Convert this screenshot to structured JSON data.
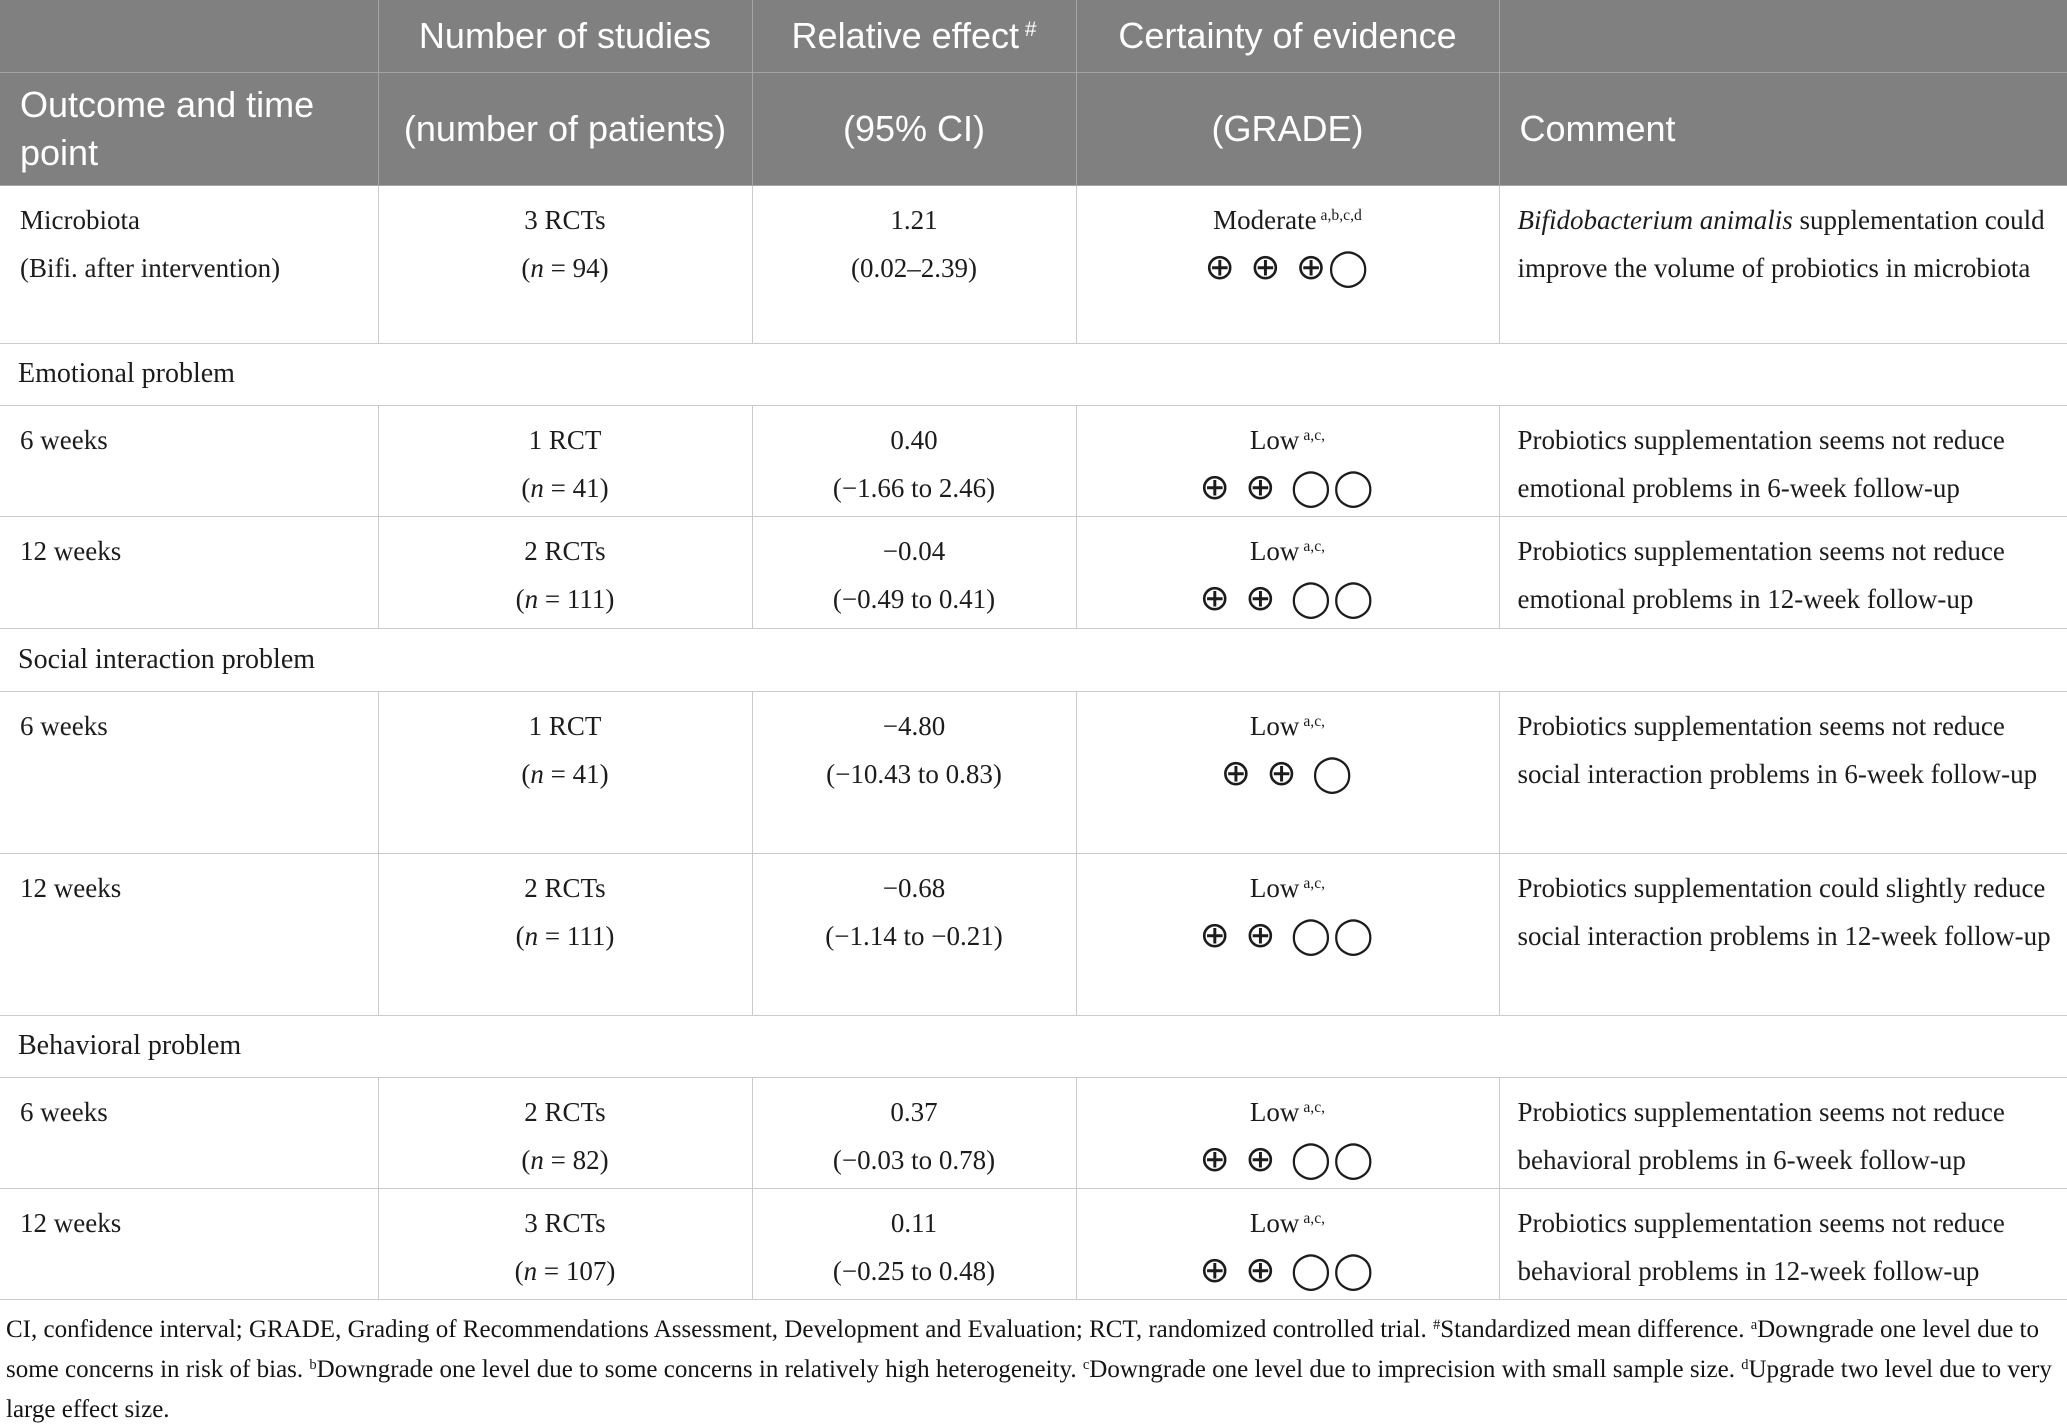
{
  "header": {
    "row1": [
      {
        "text": "",
        "sup": ""
      },
      {
        "text": "Number of studies",
        "sup": ""
      },
      {
        "text": "Relative effect",
        "sup": "#"
      },
      {
        "text": "Certainty of evidence",
        "sup": ""
      },
      {
        "text": "",
        "sup": ""
      }
    ],
    "row2": [
      {
        "text": "Outcome and time point"
      },
      {
        "text": "(number of patients)"
      },
      {
        "text": "(95% CI)"
      },
      {
        "text": "(GRADE)"
      },
      {
        "text": "Comment"
      }
    ]
  },
  "rows": [
    {
      "type": "data",
      "outcome_line1": "Microbiota",
      "outcome_line2": "(Bifi. after intervention)",
      "studies": "3 RCTs",
      "patients_pre": "(",
      "patients_var": "n",
      "patients_rest": " = 94)",
      "effect": "1.21",
      "ci": "(0.02–2.39)",
      "certainty": "Moderate",
      "certainty_sup": "a,b,c,d",
      "symbols": "⊕ ⊕ ⊕◯",
      "comment_italic": "Bifidobacterium animalis",
      "comment": " supplementation could improve the volume of probiotics in microbiota"
    },
    {
      "type": "section",
      "label": "Emotional problem"
    },
    {
      "type": "data",
      "outcome_line1": "6 weeks",
      "outcome_line2": "",
      "studies": "1 RCT",
      "patients_pre": "(",
      "patients_var": "n",
      "patients_rest": " = 41)",
      "effect": "0.40",
      "ci": "(−1.66 to 2.46)",
      "certainty": "Low",
      "certainty_sup": "a,c,",
      "symbols": "⊕ ⊕ ◯◯",
      "comment_italic": "",
      "comment": "Probiotics supplementation seems not reduce emotional problems in 6-week follow-up"
    },
    {
      "type": "data",
      "outcome_line1": "12 weeks",
      "outcome_line2": "",
      "studies": "2 RCTs",
      "patients_pre": "(",
      "patients_var": "n",
      "patients_rest": " = 111)",
      "effect": "−0.04",
      "ci": "(−0.49 to 0.41)",
      "certainty": "Low",
      "certainty_sup": "a,c,",
      "symbols": "⊕ ⊕ ◯◯",
      "comment_italic": "",
      "comment": "Probiotics supplementation seems not reduce emotional problems in 12-week follow-up"
    },
    {
      "type": "section",
      "label": "Social interaction problem"
    },
    {
      "type": "data",
      "outcome_line1": "6 weeks",
      "outcome_line2": "",
      "studies": "1 RCT",
      "patients_pre": "(",
      "patients_var": "n",
      "patients_rest": " = 41)",
      "effect": "−4.80",
      "ci": "(−10.43 to 0.83)",
      "certainty": "Low",
      "certainty_sup": "a,c,",
      "symbols": "⊕ ⊕ ◯",
      "comment_italic": "",
      "comment": "Probiotics supplementation seems not reduce social interaction problems in 6-week follow-up"
    },
    {
      "type": "data",
      "outcome_line1": "12 weeks",
      "outcome_line2": "",
      "studies": "2 RCTs",
      "patients_pre": "(",
      "patients_var": "n",
      "patients_rest": " = 111)",
      "effect": "−0.68",
      "ci": "(−1.14 to −0.21)",
      "certainty": "Low",
      "certainty_sup": "a,c,",
      "symbols": "⊕ ⊕ ◯◯",
      "comment_italic": "",
      "comment": "Probiotics supplementation could slightly reduce social interaction problems in 12-week follow-up"
    },
    {
      "type": "section",
      "label": "Behavioral problem"
    },
    {
      "type": "data",
      "outcome_line1": "6 weeks",
      "outcome_line2": "",
      "studies": "2 RCTs",
      "patients_pre": "(",
      "patients_var": "n",
      "patients_rest": " = 82)",
      "effect": "0.37",
      "ci": "(−0.03 to 0.78)",
      "certainty": "Low",
      "certainty_sup": "a,c,",
      "symbols": "⊕ ⊕ ◯◯",
      "comment_italic": "",
      "comment": "Probiotics supplementation seems not reduce behavioral problems in 6-week follow-up"
    },
    {
      "type": "data",
      "outcome_line1": "12 weeks",
      "outcome_line2": "",
      "studies": "3 RCTs",
      "patients_pre": "(",
      "patients_var": "n",
      "patients_rest": " = 107)",
      "effect": "0.11",
      "ci": "(−0.25 to 0.48)",
      "certainty": "Low",
      "certainty_sup": "a,c,",
      "symbols": "⊕ ⊕ ◯◯",
      "comment_italic": "",
      "comment": "Probiotics supplementation seems not reduce behavioral problems in 12-week follow-up"
    }
  ],
  "footnote_segments": [
    {
      "sup": "",
      "text": "CI, confidence interval; GRADE, Grading of Recommendations Assessment, Development and Evaluation; RCT, randomized controlled trial. "
    },
    {
      "sup": "#",
      "text": "Standardized mean difference. "
    },
    {
      "sup": "a",
      "text": "Downgrade one level due to some concerns in risk of bias. "
    },
    {
      "sup": "b",
      "text": "Downgrade one level due to some concerns in relatively high heterogeneity. "
    },
    {
      "sup": "c",
      "text": "Downgrade one level due to imprecision with small sample size. "
    },
    {
      "sup": "d",
      "text": "Upgrade two level due to very large effect size."
    }
  ],
  "colors": {
    "header_bg": "#808080",
    "header_line": "#a3a6a5",
    "body_line": "#cbcbcb",
    "text": "#1c1c1c"
  }
}
